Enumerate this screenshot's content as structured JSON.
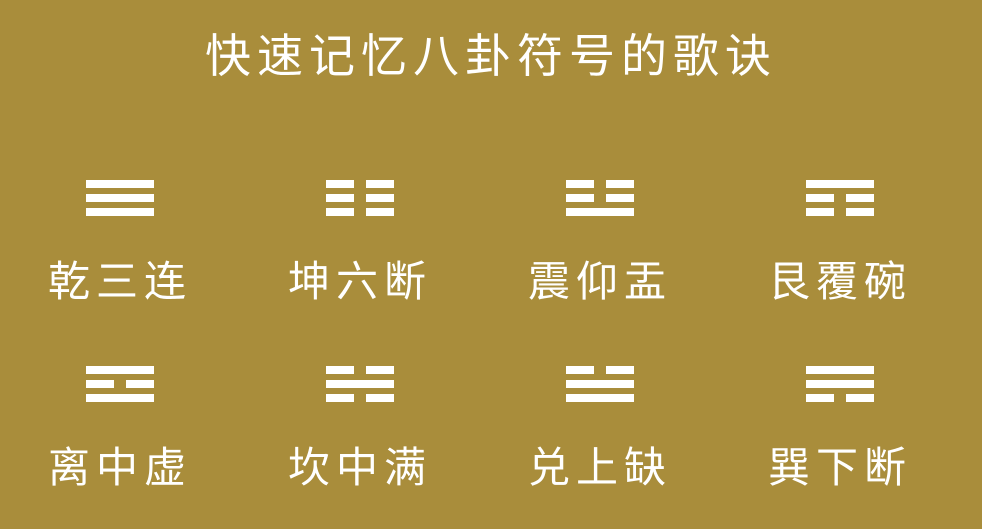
{
  "title": "快速记忆八卦符号的歌诀",
  "colors": {
    "background": "#a98d3b",
    "foreground": "#ffffff"
  },
  "trigrams": [
    {
      "label": "乾三连",
      "lines": [
        1,
        1,
        1
      ]
    },
    {
      "label": "坤六断",
      "lines": [
        0,
        0,
        0
      ]
    },
    {
      "label": "震仰盂",
      "lines": [
        0,
        0,
        1
      ]
    },
    {
      "label": "艮覆碗",
      "lines": [
        1,
        0,
        0
      ]
    },
    {
      "label": "离中虚",
      "lines": [
        1,
        0,
        1
      ]
    },
    {
      "label": "坎中满",
      "lines": [
        0,
        1,
        0
      ]
    },
    {
      "label": "兑上缺",
      "lines": [
        0,
        1,
        1
      ]
    },
    {
      "label": "巽下断",
      "lines": [
        1,
        1,
        0
      ]
    }
  ]
}
